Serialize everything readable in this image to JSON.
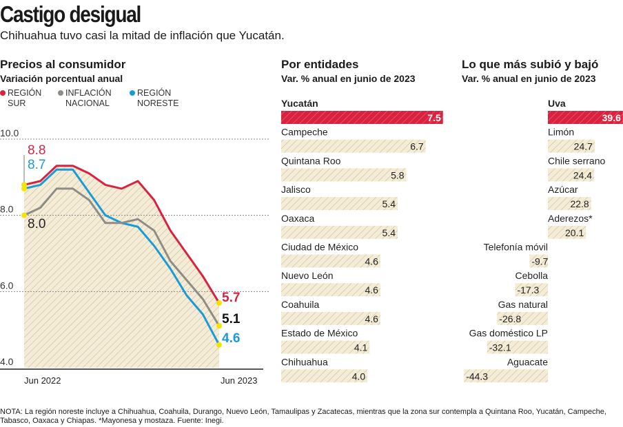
{
  "header": {
    "title": "Castigo desigual",
    "subtitle": "Chihuahua tuvo casi la mitad de inflación que Yucatán."
  },
  "colors": {
    "red": "#d8223f",
    "gray": "#8e8c86",
    "blue": "#1a9ad6",
    "fill": "#f4ecd6",
    "hatch": "#c9bd98",
    "highlight": "#f5e400"
  },
  "chart_data": [
    {
      "type": "line",
      "title": "Precios al consumidor",
      "subtitle": "Variación porcentual anual",
      "x_labels": [
        "Jun 2022",
        "Jun 2023"
      ],
      "yticks": [
        "10.0",
        "8.0",
        "6.0",
        "4.0"
      ],
      "ylim": [
        4,
        10
      ],
      "grid": true,
      "series": [
        {
          "name": "REGIÓN SUR",
          "color": "#d8223f",
          "values": [
            8.8,
            8.9,
            9.3,
            9.3,
            9.1,
            8.8,
            8.7,
            8.9,
            8.4,
            7.6,
            7.0,
            6.4,
            5.7
          ],
          "start_label": "8.8",
          "end_label": "5.7"
        },
        {
          "name": "INFLACIÓN NACIONAL",
          "color": "#8e8c86",
          "values": [
            8.0,
            8.2,
            8.7,
            8.7,
            8.4,
            7.8,
            7.8,
            7.9,
            7.6,
            6.8,
            6.3,
            5.8,
            5.1
          ],
          "start_label": "8.0",
          "end_label": "5.1"
        },
        {
          "name": "REGIÓN NORESTE",
          "color": "#1a9ad6",
          "values": [
            8.7,
            8.8,
            9.2,
            9.2,
            8.6,
            8.0,
            7.8,
            7.7,
            7.2,
            6.6,
            5.9,
            5.4,
            4.6
          ],
          "start_label": "8.7",
          "end_label": "4.6"
        }
      ],
      "legend": [
        {
          "l1": "REGIÓN",
          "l2": "SUR"
        },
        {
          "l1": "INFLACIÓN",
          "l2": "NACIONAL"
        },
        {
          "l1": "REGIÓN",
          "l2": "NORESTE"
        }
      ]
    },
    {
      "type": "bar",
      "title": "Por entidades",
      "subtitle": "Var. % anual en junio de 2023",
      "categories": [
        "Yucatán",
        "Campeche",
        "Quintana Roo",
        "Jalisco",
        "Oaxaca",
        "Ciudad de México",
        "Nuevo León",
        "Coahuila",
        "Estado de México",
        "Chihuahua"
      ],
      "values": [
        7.5,
        6.7,
        5.8,
        5.4,
        5.4,
        4.6,
        4.6,
        4.6,
        4.1,
        4.0
      ],
      "labels": [
        "7.5",
        "6.7",
        "5.8",
        "5.4",
        "5.4",
        "4.6",
        "4.6",
        "4.6",
        "4.1",
        "4.0"
      ],
      "highlight": 0
    },
    {
      "type": "bar",
      "title": "Lo que más subió y bajó",
      "subtitle": "Var. % anual en junio de 2023",
      "categories": [
        "Uva",
        "Limón",
        "Chile serrano",
        "Azúcar",
        "Aderezos*",
        "Telefonía móvil",
        "Cebolla",
        "Gas natural",
        "Gas doméstico LP",
        "Aguacate"
      ],
      "values": [
        39.6,
        24.7,
        24.4,
        22.8,
        20.1,
        -9.7,
        -17.3,
        -26.8,
        -32.1,
        -44.3
      ],
      "labels": [
        "39.6",
        "24.7",
        "24.4",
        "22.8",
        "20.1",
        "-9.7",
        "-17.3",
        "-26.8",
        "-32.1",
        "-44.3"
      ],
      "highlight": 0
    }
  ],
  "note": "NOTA: La región noreste incluye a Chihuahua, Coahuila, Durango, Nuevo León, Tamaulipas y Zacatecas, mientras que la zona sur contempla a Quintana Roo, Yucatán, Campeche, Tabasco, Oaxaca y Chiapas. *Mayonesa y mostaza. Fuente: Inegi."
}
